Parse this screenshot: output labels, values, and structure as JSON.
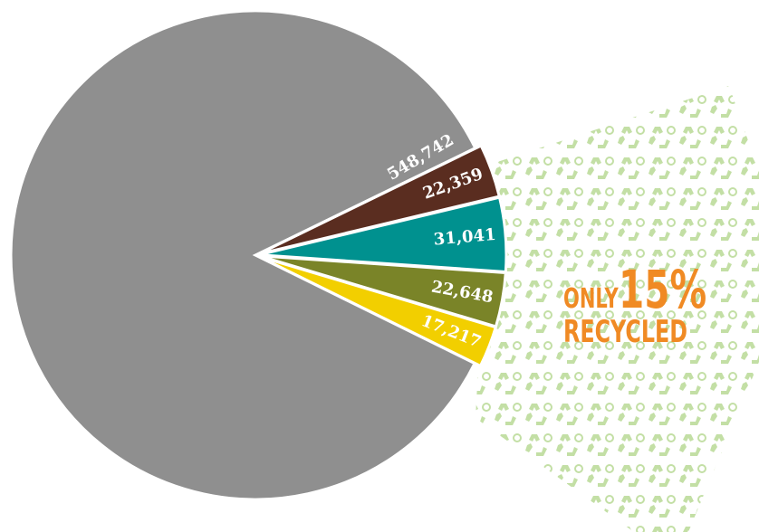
{
  "chart_data": {
    "type": "pie",
    "values": [
      548742,
      22359,
      31041,
      22648,
      17217
    ],
    "value_labels": [
      "548,742",
      "22,359",
      "31,041",
      "22,648",
      "17,217"
    ],
    "colors": [
      "#8f8f8f",
      "#5a2d20",
      "#00918f",
      "#7a8428",
      "#f2cf00"
    ],
    "annotation": [
      "ONLY",
      "15%",
      "RECYCLED"
    ]
  }
}
